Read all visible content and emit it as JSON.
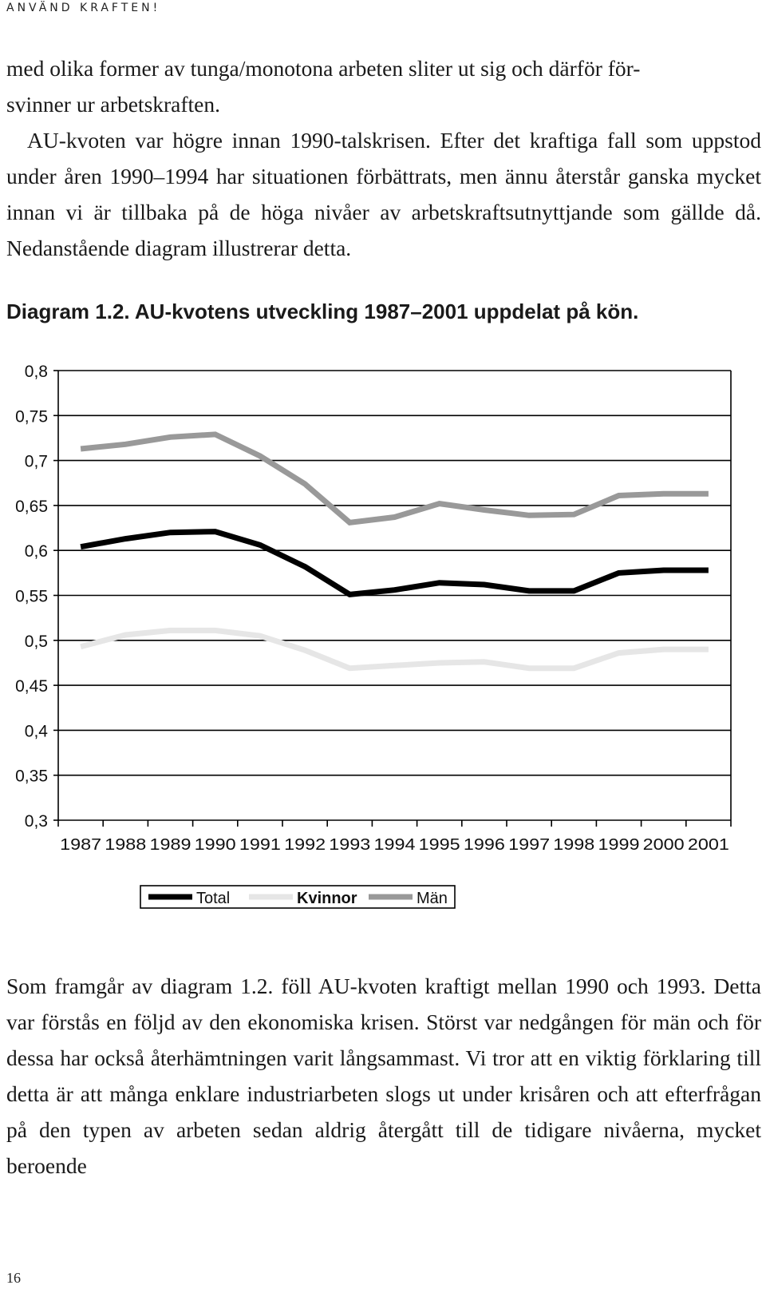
{
  "header": {
    "running_head": "ANVÄND KRAFTEN!"
  },
  "text": {
    "paragraph_1_line_1": "med olika former av tunga/monotona arbeten sliter ut sig och därför för-",
    "paragraph_1_line_2": "svinner ur arbetskraften.",
    "paragraph_2": "AU-kvoten var högre innan 1990-talskrisen. Efter det kraftiga fall som uppstod under åren 1990–1994 har situationen förbättrats, men ännu återstår ganska mycket innan vi är tillbaka på de höga nivåer av arbets­kraftsutnyttjande som gällde då. Nedanstående diagram illustrerar detta.",
    "caption": "Diagram 1.2. AU-kvotens utveckling 1987–2001 uppdelat på kön.",
    "paragraph_3": "Som framgår av diagram 1.2. föll AU-kvoten kraftigt mellan 1990 och 1993. Detta var förstås en följd av den ekonomiska krisen. Störst var nedgången för män och för dessa har också återhämtningen varit lång­sammast. Vi tror att en viktig förklaring till detta är att många enklare industriarbeten slogs ut under krisåren och att efterfrågan på den typen av arbeten sedan aldrig återgått till de tidigare nivåerna, mycket beroende"
  },
  "footer": {
    "page_number": "16"
  },
  "chart_data": {
    "type": "line",
    "title": "",
    "xlabel": "",
    "ylabel": "",
    "x": [
      "1987",
      "1988",
      "1989",
      "1990",
      "1991",
      "1992",
      "1993",
      "1994",
      "1995",
      "1996",
      "1997",
      "1998",
      "1999",
      "2000",
      "2001"
    ],
    "yticks": [
      "0,3",
      "0,35",
      "0,4",
      "0,45",
      "0,5",
      "0,55",
      "0,6",
      "0,65",
      "0,7",
      "0,75",
      "0,8"
    ],
    "ylim": [
      0.3,
      0.8
    ],
    "grid": "horizontal",
    "legend_position": "bottom",
    "series": [
      {
        "name": "Total",
        "color": "#000000",
        "values": [
          0.604,
          0.613,
          0.62,
          0.621,
          0.606,
          0.582,
          0.551,
          0.556,
          0.564,
          0.562,
          0.555,
          0.555,
          0.575,
          0.578,
          0.578
        ]
      },
      {
        "name": "Kvinnor",
        "color": "#e6e6e6",
        "values": [
          0.493,
          0.506,
          0.511,
          0.511,
          0.505,
          0.489,
          0.469,
          0.472,
          0.475,
          0.476,
          0.469,
          0.469,
          0.486,
          0.49,
          0.49
        ]
      },
      {
        "name": "Män",
        "color": "#999999",
        "values": [
          0.713,
          0.718,
          0.726,
          0.729,
          0.705,
          0.674,
          0.631,
          0.637,
          0.652,
          0.645,
          0.639,
          0.64,
          0.661,
          0.663,
          0.663
        ]
      }
    ]
  }
}
